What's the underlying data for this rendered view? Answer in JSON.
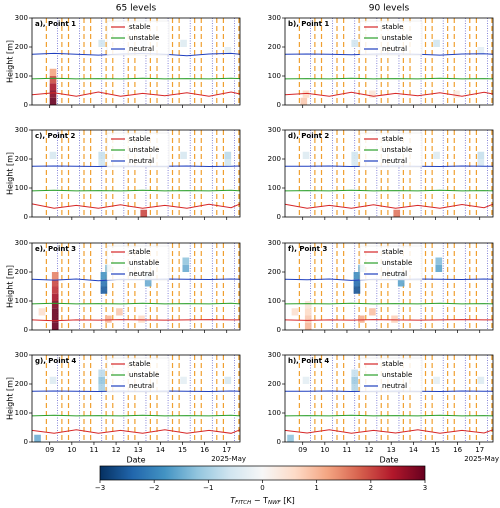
{
  "columns": [
    "65 levels",
    "90 levels"
  ],
  "colorbar": {
    "lim": [
      -3,
      3
    ],
    "ticks": [
      {
        "value": -3,
        "label": "−3"
      },
      {
        "value": -2,
        "label": "−2"
      },
      {
        "value": -1,
        "label": "−1"
      },
      0,
      1,
      2,
      3
    ],
    "label": [
      "T",
      "FITCH",
      " − T",
      "NWF",
      " [K]"
    ]
  },
  "chart_data": [
    {
      "type": "heatmap",
      "title": "a), Point 1",
      "ylabel": "Height [m]",
      "ylim": [
        0,
        300
      ],
      "yticks": [
        0,
        100,
        200,
        300
      ],
      "xlim": [
        8.2,
        17.6
      ],
      "xticks": [
        9,
        10,
        11,
        12,
        13,
        14,
        15,
        16,
        17
      ],
      "x": [
        8.2,
        9.2,
        10.2,
        11.2,
        12.2,
        13.2,
        14.2,
        15.2,
        16.2,
        17.2,
        17.6
      ],
      "series": [
        {
          "name": "stable",
          "color": "#d62728",
          "values": [
            35,
            42,
            30,
            45,
            30,
            40,
            32,
            42,
            30,
            45,
            38
          ]
        },
        {
          "name": "unstable",
          "color": "#2ca02c",
          "values": [
            90,
            92,
            90,
            91,
            90,
            92,
            90,
            91,
            90,
            92,
            91
          ]
        },
        {
          "name": "neutral",
          "color": "#1f3fbf",
          "values": [
            175,
            178,
            175,
            172,
            176,
            178,
            175,
            170,
            176,
            178,
            175
          ]
        }
      ],
      "heat": {
        "x": [
          9.0,
          9.0,
          9.0,
          9.0,
          9.0,
          11.2,
          13.1,
          14.9,
          16.9
        ],
        "y": [
          0,
          25,
          50,
          75,
          100,
          200,
          200,
          200,
          175
        ],
        "values": [
          3,
          2.8,
          2.5,
          2,
          1.2,
          -0.6,
          -0.5,
          -0.4,
          -0.3
        ]
      }
    },
    {
      "type": "heatmap",
      "title": "b), Point 1",
      "ylim": [
        0,
        300
      ],
      "yticks": [
        0,
        100,
        200,
        300
      ],
      "xlim": [
        8.2,
        17.6
      ],
      "xticks": [
        9,
        10,
        11,
        12,
        13,
        14,
        15,
        16,
        17
      ],
      "x": [
        8.2,
        9.2,
        10.2,
        11.2,
        12.2,
        13.2,
        14.2,
        15.2,
        16.2,
        17.2,
        17.6
      ],
      "series": [
        {
          "name": "stable",
          "color": "#d62728",
          "values": [
            35,
            40,
            30,
            44,
            30,
            40,
            32,
            42,
            30,
            44,
            38
          ]
        },
        {
          "name": "unstable",
          "color": "#2ca02c",
          "values": [
            90,
            91,
            90,
            92,
            90,
            91,
            90,
            92,
            90,
            91,
            90
          ]
        },
        {
          "name": "neutral",
          "color": "#1f3fbf",
          "values": [
            175,
            176,
            175,
            173,
            176,
            177,
            175,
            172,
            176,
            177,
            175
          ]
        }
      ],
      "heat": {
        "x": [
          8.9,
          9.0,
          11.2,
          13.1,
          14.9,
          16.9,
          12.0,
          15.8
        ],
        "y": [
          0,
          25,
          200,
          200,
          200,
          175,
          25,
          25
        ],
        "values": [
          0.8,
          0.6,
          -0.6,
          -0.5,
          -0.6,
          -0.3,
          0.4,
          0.3
        ]
      }
    },
    {
      "type": "heatmap",
      "title": "c), Point 2",
      "ylabel": "Height [m]",
      "ylim": [
        0,
        300
      ],
      "yticks": [
        0,
        100,
        200,
        300
      ],
      "xlim": [
        8.2,
        17.6
      ],
      "xticks": [
        9,
        10,
        11,
        12,
        13,
        14,
        15,
        16,
        17
      ],
      "x": [
        8.2,
        9.2,
        10.2,
        11.2,
        12.2,
        13.2,
        14.2,
        15.2,
        16.2,
        17.2,
        17.6
      ],
      "series": [
        {
          "name": "stable",
          "color": "#d62728",
          "values": [
            45,
            30,
            40,
            30,
            42,
            30,
            40,
            30,
            44,
            32,
            45
          ]
        },
        {
          "name": "unstable",
          "color": "#2ca02c",
          "values": [
            90,
            92,
            90,
            91,
            90,
            92,
            90,
            91,
            90,
            92,
            90
          ]
        },
        {
          "name": "neutral",
          "color": "#1f3fbf",
          "values": [
            175,
            176,
            175,
            174,
            176,
            175,
            175,
            176,
            174,
            175,
            176
          ]
        }
      ],
      "heat": {
        "x": [
          9.0,
          11.2,
          11.2,
          13.1,
          13.1,
          14.9,
          16.9,
          16.9
        ],
        "y": [
          200,
          175,
          200,
          200,
          0,
          200,
          200,
          175
        ],
        "values": [
          -0.5,
          -0.6,
          -0.7,
          -0.4,
          2,
          -0.5,
          -0.8,
          -0.6
        ]
      }
    },
    {
      "type": "heatmap",
      "title": "d), Point 2",
      "ylim": [
        0,
        300
      ],
      "yticks": [
        0,
        100,
        200,
        300
      ],
      "xlim": [
        8.2,
        17.6
      ],
      "xticks": [
        9,
        10,
        11,
        12,
        13,
        14,
        15,
        16,
        17
      ],
      "x": [
        8.2,
        9.2,
        10.2,
        11.2,
        12.2,
        13.2,
        14.2,
        15.2,
        16.2,
        17.2,
        17.6
      ],
      "series": [
        {
          "name": "stable",
          "color": "#d62728",
          "values": [
            44,
            30,
            40,
            30,
            42,
            30,
            40,
            30,
            43,
            32,
            44
          ]
        },
        {
          "name": "unstable",
          "color": "#2ca02c",
          "values": [
            90,
            91,
            90,
            92,
            90,
            91,
            90,
            92,
            90,
            91,
            90
          ]
        },
        {
          "name": "neutral",
          "color": "#1f3fbf",
          "values": [
            175,
            175,
            176,
            174,
            175,
            176,
            175,
            174,
            176,
            175,
            175
          ]
        }
      ],
      "heat": {
        "x": [
          9.0,
          11.2,
          11.2,
          13.1,
          13.1,
          14.9,
          16.9,
          16.9
        ],
        "y": [
          200,
          175,
          200,
          200,
          0,
          200,
          200,
          175
        ],
        "values": [
          -0.4,
          -0.5,
          -0.6,
          -0.4,
          1.6,
          -0.4,
          -0.7,
          -0.5
        ]
      }
    },
    {
      "type": "heatmap",
      "title": "e), Point 3",
      "ylabel": "Height [m]",
      "ylim": [
        0,
        300
      ],
      "yticks": [
        0,
        100,
        200,
        300
      ],
      "xlim": [
        8.2,
        17.6
      ],
      "xticks": [
        9,
        10,
        11,
        12,
        13,
        14,
        15,
        16,
        17
      ],
      "x": [
        8.2,
        9.2,
        10.2,
        11.2,
        12.2,
        13.2,
        14.2,
        15.2,
        16.2,
        17.2,
        17.6
      ],
      "series": [
        {
          "name": "stable",
          "color": "#d62728",
          "values": [
            35,
            32,
            35,
            34,
            36,
            35,
            34,
            35,
            36,
            35,
            35
          ]
        },
        {
          "name": "unstable",
          "color": "#2ca02c",
          "values": [
            90,
            92,
            90,
            91,
            90,
            92,
            90,
            91,
            90,
            92,
            90
          ]
        },
        {
          "name": "neutral",
          "color": "#1f3fbf",
          "values": [
            175,
            172,
            176,
            170,
            175,
            174,
            176,
            175,
            174,
            176,
            175
          ]
        }
      ],
      "heat": {
        "x": [
          9.1,
          9.1,
          9.1,
          9.1,
          9.1,
          9.1,
          9.1,
          9.1,
          11.3,
          11.3,
          11.3,
          11.5,
          13.3,
          13.3,
          15.0,
          15.0,
          11.5,
          12.0,
          13.0,
          8.5
        ],
        "y": [
          0,
          25,
          50,
          75,
          100,
          125,
          150,
          175,
          125,
          150,
          175,
          200,
          150,
          175,
          200,
          225,
          25,
          50,
          25,
          50
        ],
        "values": [
          3,
          3,
          3,
          2.8,
          2.5,
          2.2,
          2,
          1.5,
          -2.5,
          -2.2,
          -1.8,
          -1.2,
          -1.5,
          -1,
          -1.5,
          -1.2,
          1,
          0.8,
          0.6,
          0.5
        ]
      }
    },
    {
      "type": "heatmap",
      "title": "f), Point 3",
      "ylim": [
        0,
        300
      ],
      "yticks": [
        0,
        100,
        200,
        300
      ],
      "xlim": [
        8.2,
        17.6
      ],
      "xticks": [
        9,
        10,
        11,
        12,
        13,
        14,
        15,
        16,
        17
      ],
      "x": [
        8.2,
        9.2,
        10.2,
        11.2,
        12.2,
        13.2,
        14.2,
        15.2,
        16.2,
        17.2,
        17.6
      ],
      "series": [
        {
          "name": "stable",
          "color": "#d62728",
          "values": [
            35,
            33,
            35,
            34,
            36,
            35,
            34,
            35,
            36,
            35,
            35
          ]
        },
        {
          "name": "unstable",
          "color": "#2ca02c",
          "values": [
            90,
            91,
            90,
            92,
            90,
            91,
            90,
            92,
            90,
            91,
            90
          ]
        },
        {
          "name": "neutral",
          "color": "#1f3fbf",
          "values": [
            175,
            173,
            176,
            171,
            175,
            174,
            176,
            175,
            174,
            176,
            175
          ]
        }
      ],
      "heat": {
        "x": [
          9.1,
          9.1,
          9.1,
          9.1,
          11.3,
          11.3,
          11.3,
          11.5,
          13.3,
          13.3,
          15.0,
          15.0,
          11.5,
          12.0,
          13.0,
          8.5
        ],
        "y": [
          0,
          25,
          50,
          75,
          125,
          150,
          175,
          200,
          150,
          175,
          200,
          225,
          25,
          50,
          25,
          50
        ],
        "values": [
          1,
          0.8,
          0.6,
          0.4,
          -2.6,
          -2.3,
          -1.9,
          -1.3,
          -1.6,
          -1.1,
          -1.6,
          -1.3,
          1.1,
          0.9,
          0.7,
          0.5
        ]
      }
    },
    {
      "type": "heatmap",
      "title": "g), Point 4",
      "ylabel": "Height [m]",
      "xlabel": "Date",
      "x_offset_label": "2025-May",
      "ylim": [
        0,
        300
      ],
      "yticks": [
        0,
        100,
        200,
        300
      ],
      "xlim": [
        8.2,
        17.6
      ],
      "xticks": [
        {
          "value": 9,
          "label": "09"
        },
        10,
        11,
        12,
        13,
        14,
        15,
        16,
        17
      ],
      "x": [
        8.2,
        9.2,
        10.2,
        11.2,
        12.2,
        13.2,
        14.2,
        15.2,
        16.2,
        17.2,
        17.6
      ],
      "series": [
        {
          "name": "stable",
          "color": "#d62728",
          "values": [
            40,
            30,
            42,
            30,
            40,
            30,
            42,
            30,
            40,
            30,
            42
          ]
        },
        {
          "name": "unstable",
          "color": "#2ca02c",
          "values": [
            90,
            92,
            90,
            91,
            90,
            92,
            90,
            91,
            90,
            92,
            90
          ]
        },
        {
          "name": "neutral",
          "color": "#1f3fbf",
          "values": [
            175,
            176,
            175,
            174,
            176,
            175,
            176,
            175,
            174,
            176,
            175
          ]
        }
      ],
      "heat": {
        "x": [
          9.0,
          11.2,
          11.2,
          11.2,
          13.1,
          14.9,
          16.9,
          8.3
        ],
        "y": [
          200,
          175,
          200,
          225,
          200,
          200,
          200,
          0
        ],
        "values": [
          -0.4,
          -1,
          -1.2,
          -0.8,
          -0.4,
          -0.3,
          -0.5,
          -1.5
        ]
      }
    },
    {
      "type": "heatmap",
      "title": "h), Point 4",
      "xlabel": "Date",
      "x_offset_label": "2025-May",
      "ylim": [
        0,
        300
      ],
      "yticks": [
        0,
        100,
        200,
        300
      ],
      "xlim": [
        8.2,
        17.6
      ],
      "xticks": [
        {
          "value": 9,
          "label": "09"
        },
        10,
        11,
        12,
        13,
        14,
        15,
        16,
        17
      ],
      "x": [
        8.2,
        9.2,
        10.2,
        11.2,
        12.2,
        13.2,
        14.2,
        15.2,
        16.2,
        17.2,
        17.6
      ],
      "series": [
        {
          "name": "stable",
          "color": "#d62728",
          "values": [
            40,
            31,
            42,
            30,
            40,
            31,
            42,
            30,
            40,
            31,
            42
          ]
        },
        {
          "name": "unstable",
          "color": "#2ca02c",
          "values": [
            90,
            91,
            90,
            92,
            90,
            91,
            90,
            92,
            90,
            91,
            90
          ]
        },
        {
          "name": "neutral",
          "color": "#1f3fbf",
          "values": [
            175,
            175,
            176,
            174,
            175,
            176,
            175,
            174,
            176,
            175,
            175
          ]
        }
      ],
      "heat": {
        "x": [
          9.0,
          11.2,
          11.2,
          11.2,
          13.1,
          14.9,
          16.9,
          8.3
        ],
        "y": [
          200,
          175,
          200,
          225,
          200,
          200,
          200,
          0
        ],
        "values": [
          -0.3,
          -0.9,
          -1.1,
          -0.7,
          -0.3,
          -0.3,
          -0.4,
          -1.2
        ]
      }
    }
  ]
}
